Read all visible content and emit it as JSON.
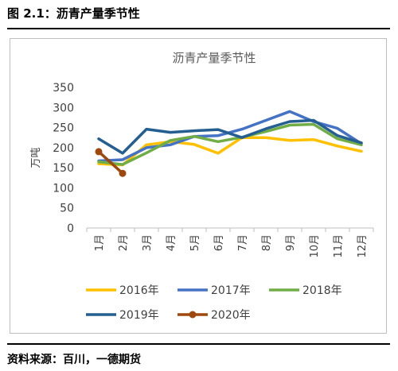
{
  "figure": {
    "title": "图 2.1：沥青产量季节性",
    "source": "资料来源：百川，一德期货"
  },
  "chart_data": {
    "type": "line",
    "title": "沥青产量季节性",
    "ylabel": "万吨",
    "xlabel": "",
    "categories": [
      "1月",
      "2月",
      "3月",
      "4月",
      "5月",
      "6月",
      "7月",
      "8月",
      "9月",
      "10月",
      "11月",
      "12月"
    ],
    "yticks": [
      "0",
      "50",
      "100",
      "150",
      "200",
      "250",
      "300",
      "350"
    ],
    "ylim": [
      0,
      350
    ],
    "grid": false,
    "legend_position": "bottom",
    "series": [
      {
        "name": "2016年",
        "color": "#FFC000",
        "marker": false,
        "values": [
          160,
          157,
          207,
          215,
          208,
          186,
          225,
          225,
          218,
          220,
          204,
          191
        ]
      },
      {
        "name": "2017年",
        "color": "#4472C4",
        "marker": false,
        "values": [
          167,
          170,
          200,
          207,
          228,
          230,
          246,
          268,
          290,
          265,
          248,
          210
        ]
      },
      {
        "name": "2018年",
        "color": "#70AD47",
        "marker": false,
        "values": [
          165,
          158,
          187,
          218,
          228,
          215,
          226,
          240,
          256,
          258,
          222,
          207
        ]
      },
      {
        "name": "2019年",
        "color": "#255E91",
        "marker": false,
        "values": [
          222,
          186,
          246,
          238,
          242,
          245,
          225,
          247,
          265,
          268,
          230,
          212
        ]
      },
      {
        "name": "2020年",
        "color": "#9E480E",
        "marker": true,
        "values": [
          190,
          136,
          null,
          null,
          null,
          null,
          null,
          null,
          null,
          null,
          null,
          null
        ]
      }
    ]
  }
}
